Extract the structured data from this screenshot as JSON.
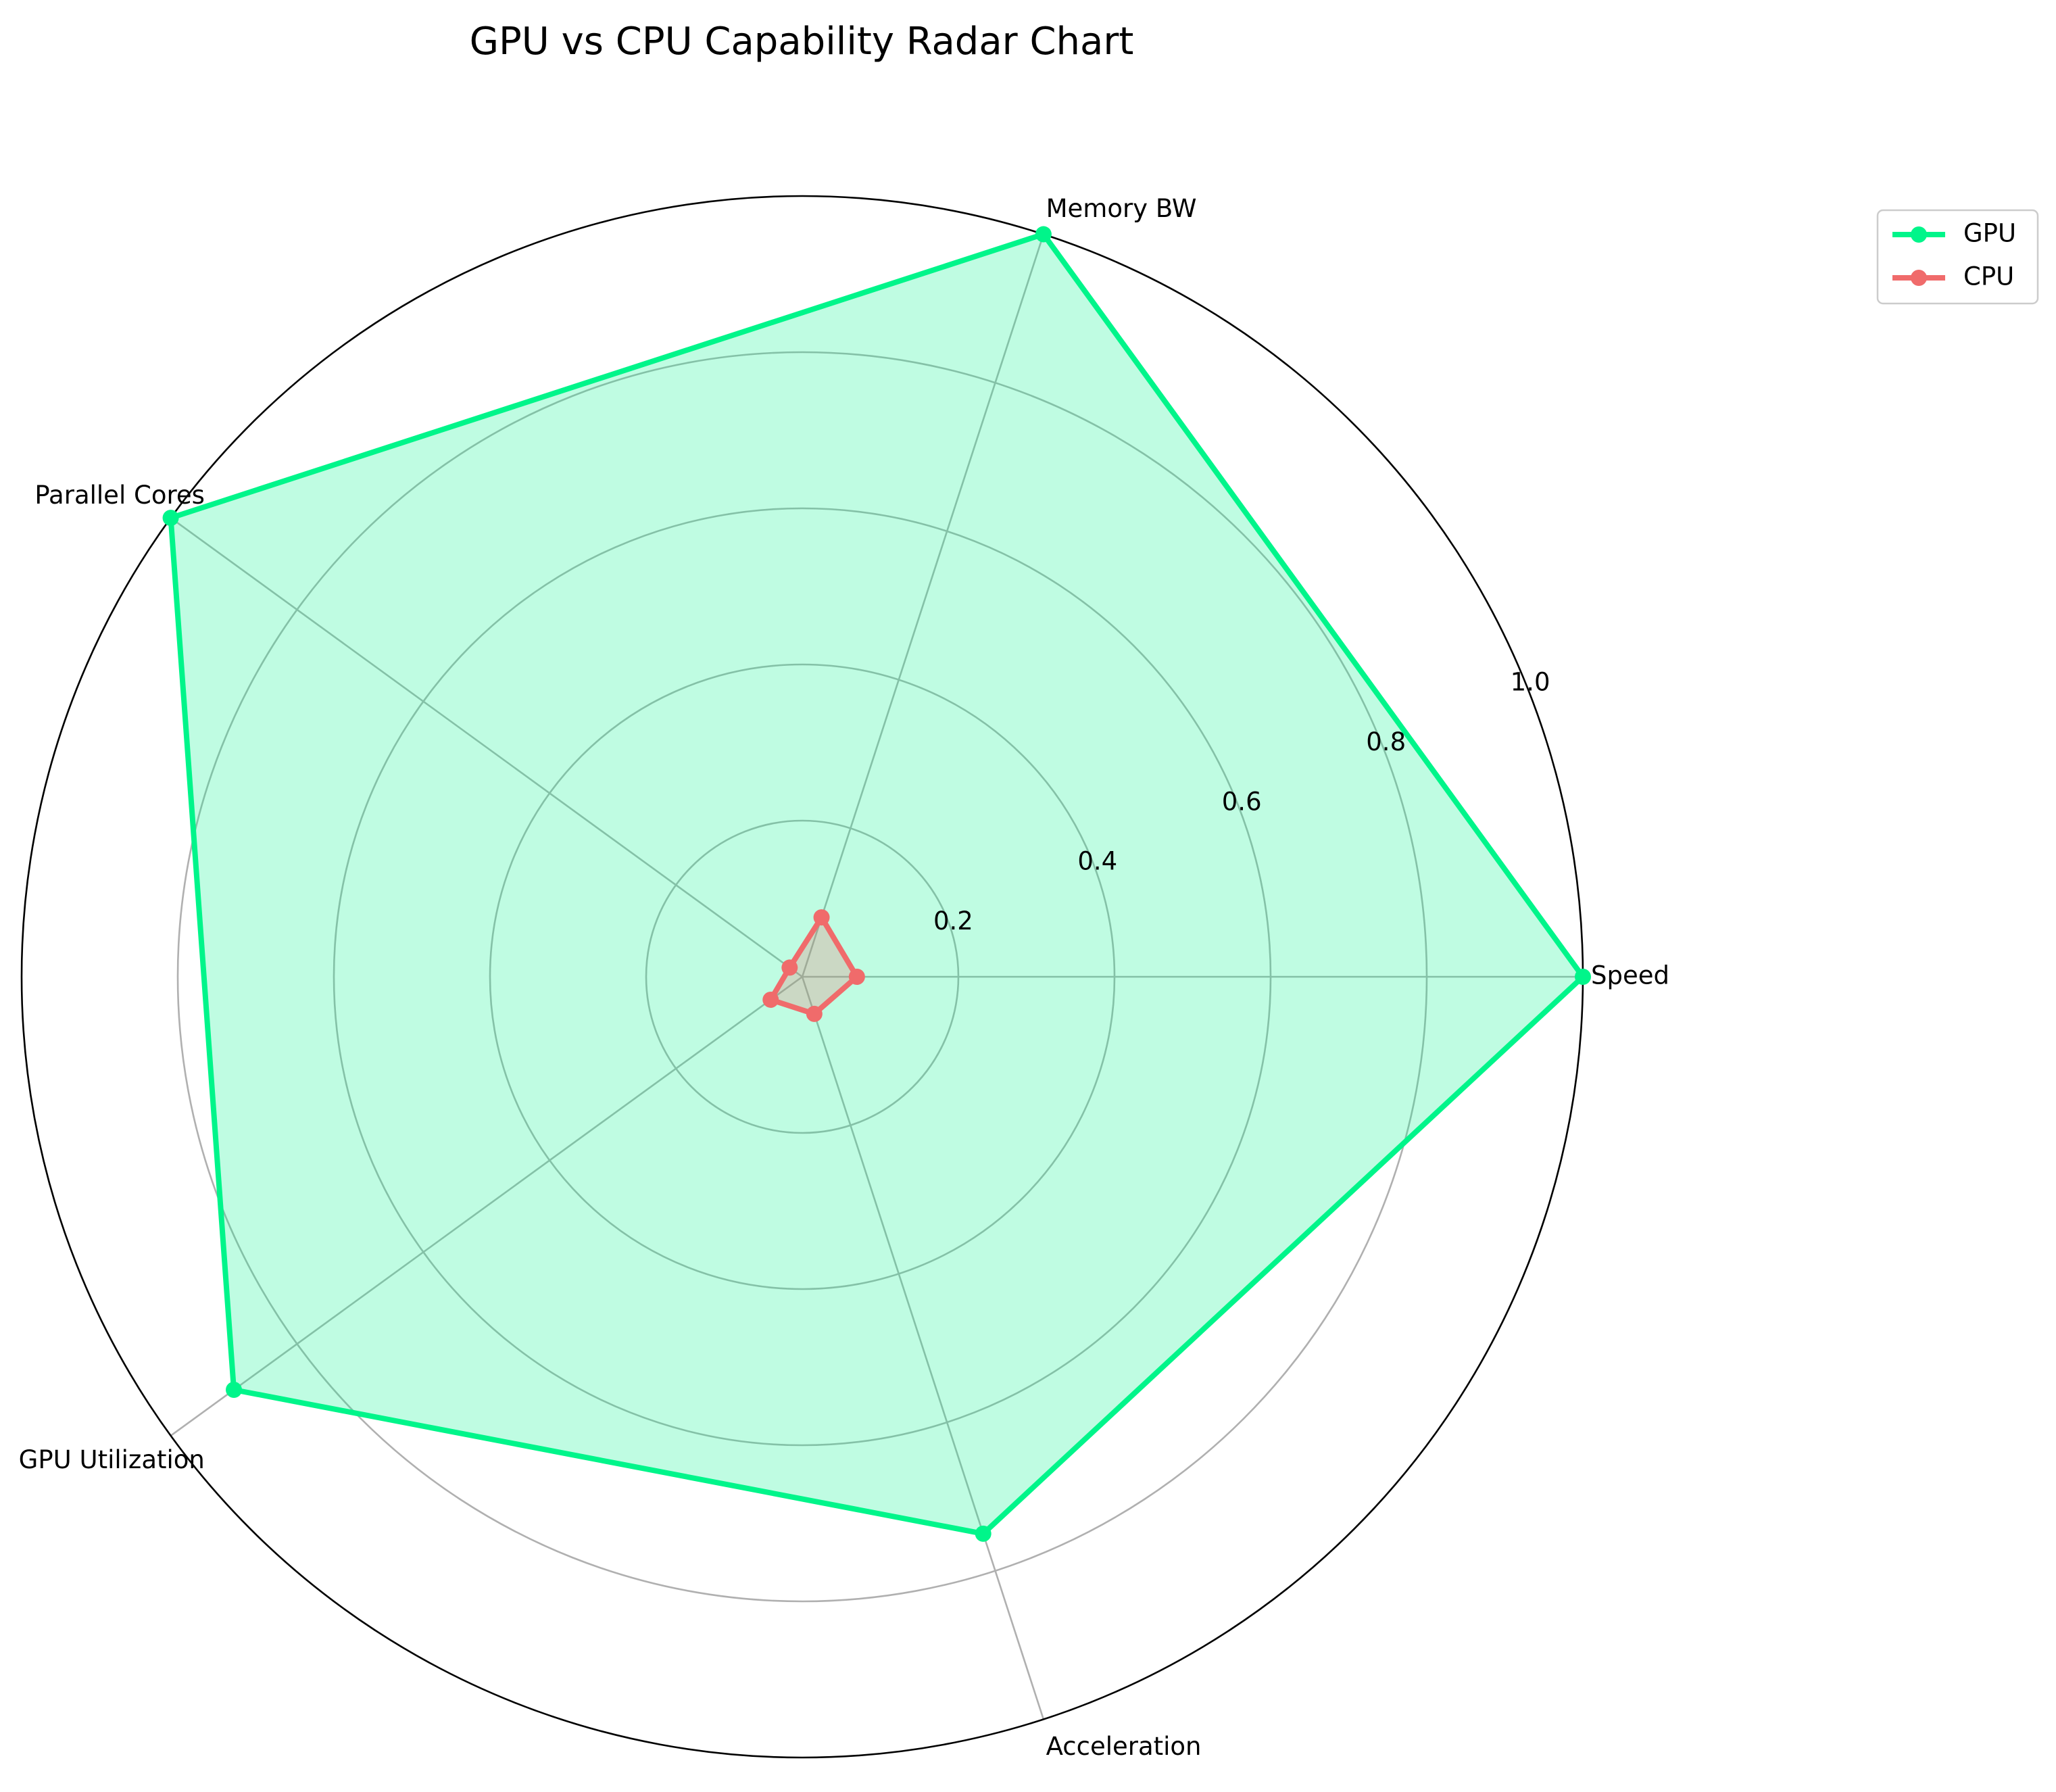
{
  "chart_data": {
    "type": "radar",
    "title": "GPU vs CPU Capability Radar Chart",
    "categories": [
      "Speed",
      "Memory BW",
      "Parallel Cores",
      "GPU Utilization",
      "Acceleration"
    ],
    "rlim": [
      0,
      1.0
    ],
    "rticks": [
      0.2,
      0.4,
      0.6,
      0.8,
      1.0
    ],
    "rtick_labels": [
      "0.2",
      "0.4",
      "0.6",
      "0.8",
      "1.0"
    ],
    "grid": true,
    "legend_position": "top-right",
    "series": [
      {
        "name": "GPU",
        "color": "#00f58a",
        "values": [
          1.0,
          1.0,
          1.0,
          0.9,
          0.75
        ]
      },
      {
        "name": "CPU",
        "color": "#f06b6b",
        "values": [
          0.07,
          0.08,
          0.02,
          0.05,
          0.05
        ]
      }
    ]
  }
}
